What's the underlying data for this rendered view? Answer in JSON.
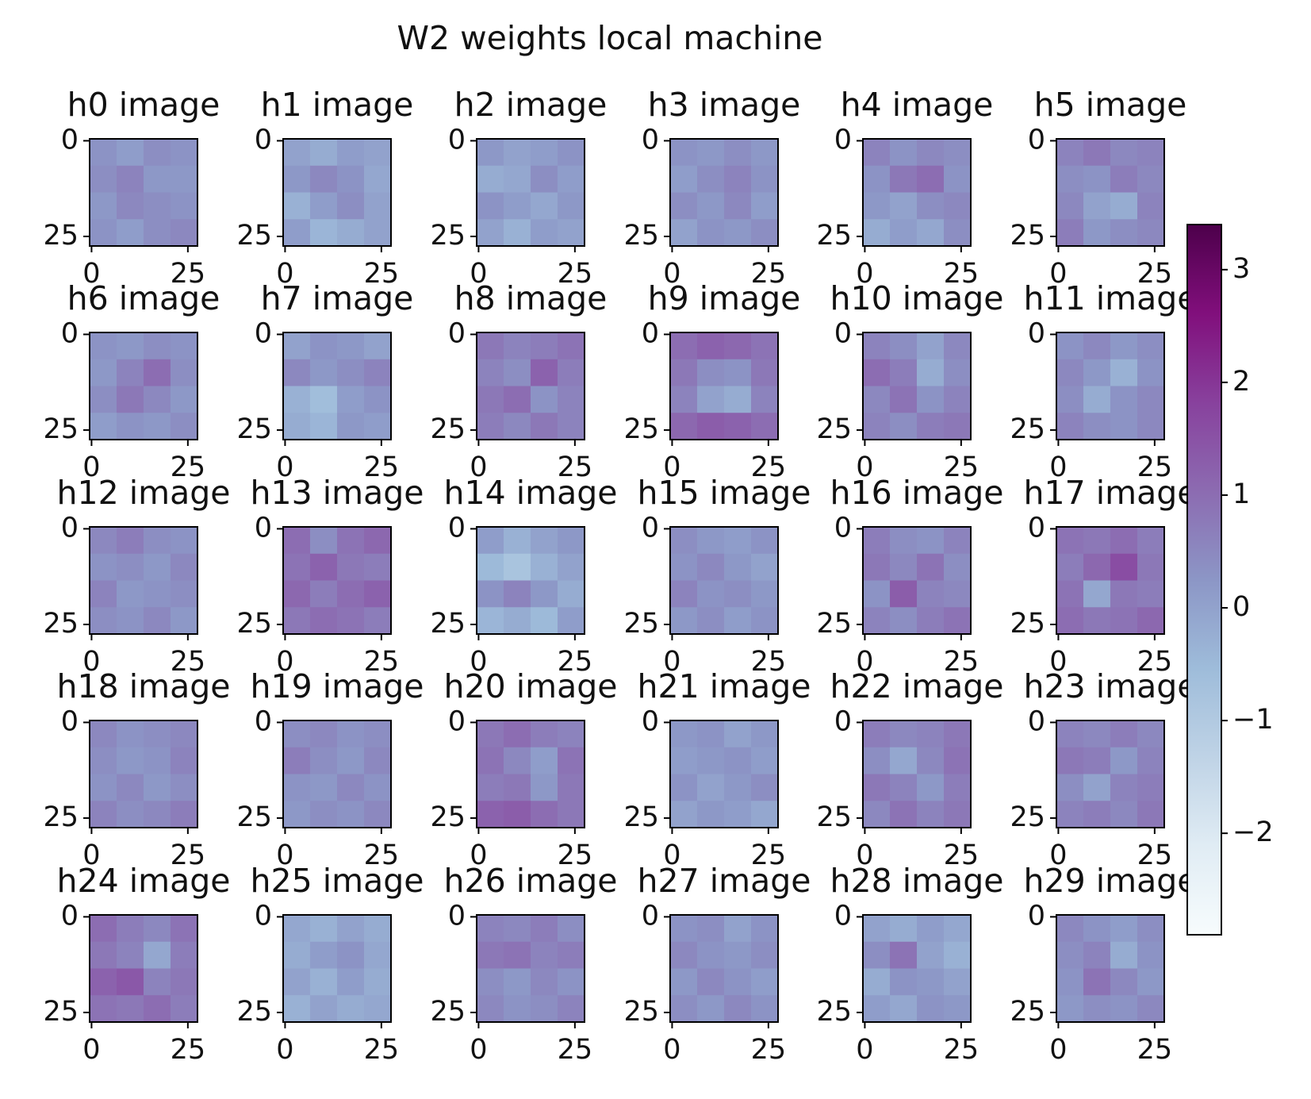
{
  "title": "W2 weights local machine",
  "colorbar": {
    "ylim": [
      -2.9,
      3.4
    ],
    "yticks": [
      {
        "value": -2,
        "label": "−2"
      },
      {
        "value": -1,
        "label": "−1"
      },
      0,
      1,
      2,
      3
    ],
    "colormap": [
      "#f7fcfd",
      "#e0ecf4",
      "#bfd3e6",
      "#9ebcda",
      "#8c96c6",
      "#8c6bb1",
      "#88419d",
      "#810f7c",
      "#4d004b"
    ]
  },
  "chart_data": [
    {
      "type": "heatmap",
      "title": "h0 image",
      "xlim": [
        -0.5,
        27.5
      ],
      "ylim": [
        27.5,
        -0.5
      ],
      "xticks": [
        0,
        25
      ],
      "yticks": [
        0,
        25
      ],
      "values": [
        [
          0.3,
          0.1,
          0.4,
          0.3
        ],
        [
          0.4,
          0.6,
          0.2,
          0.2
        ],
        [
          0.2,
          0.5,
          0.4,
          0.3
        ],
        [
          0.3,
          0.1,
          0.4,
          0.5
        ]
      ]
    },
    {
      "type": "heatmap",
      "title": "h1 image",
      "xlim": [
        -0.5,
        27.5
      ],
      "ylim": [
        27.5,
        -0.5
      ],
      "xticks": [
        0,
        25
      ],
      "yticks": [
        0,
        25
      ],
      "values": [
        [
          0.0,
          -0.2,
          0.1,
          0.0
        ],
        [
          0.2,
          0.5,
          0.3,
          -0.1
        ],
        [
          -0.3,
          0.1,
          0.4,
          0.0
        ],
        [
          0.1,
          -0.4,
          -0.2,
          0.0
        ]
      ]
    },
    {
      "type": "heatmap",
      "title": "h2 image",
      "xlim": [
        -0.5,
        27.5
      ],
      "ylim": [
        27.5,
        -0.5
      ],
      "xticks": [
        0,
        25
      ],
      "yticks": [
        0,
        25
      ],
      "values": [
        [
          0.2,
          0.0,
          0.1,
          0.3
        ],
        [
          -0.2,
          -0.1,
          0.4,
          0.1
        ],
        [
          0.3,
          0.1,
          -0.1,
          0.2
        ],
        [
          0.0,
          -0.3,
          0.1,
          0.0
        ]
      ]
    },
    {
      "type": "heatmap",
      "title": "h3 image",
      "xlim": [
        -0.5,
        27.5
      ],
      "ylim": [
        27.5,
        -0.5
      ],
      "xticks": [
        0,
        25
      ],
      "yticks": [
        0,
        25
      ],
      "values": [
        [
          0.3,
          0.2,
          0.4,
          0.2
        ],
        [
          0.1,
          0.4,
          0.6,
          0.3
        ],
        [
          0.4,
          0.2,
          0.5,
          0.1
        ],
        [
          0.0,
          0.3,
          0.2,
          0.4
        ]
      ]
    },
    {
      "type": "heatmap",
      "title": "h4 image",
      "xlim": [
        -0.5,
        27.5
      ],
      "ylim": [
        27.5,
        -0.5
      ],
      "xticks": [
        0,
        25
      ],
      "yticks": [
        0,
        25
      ],
      "values": [
        [
          0.6,
          0.3,
          0.5,
          0.4
        ],
        [
          0.3,
          0.8,
          1.0,
          0.3
        ],
        [
          0.2,
          0.0,
          0.4,
          0.5
        ],
        [
          -0.2,
          0.1,
          -0.1,
          0.4
        ]
      ]
    },
    {
      "type": "heatmap",
      "title": "h5 image",
      "xlim": [
        -0.5,
        27.5
      ],
      "ylim": [
        27.5,
        -0.5
      ],
      "xticks": [
        0,
        25
      ],
      "yticks": [
        0,
        25
      ],
      "values": [
        [
          0.6,
          0.8,
          0.5,
          0.6
        ],
        [
          0.4,
          0.3,
          0.7,
          0.5
        ],
        [
          0.5,
          0.0,
          -0.2,
          0.6
        ],
        [
          0.7,
          0.2,
          0.4,
          0.5
        ]
      ]
    },
    {
      "type": "heatmap",
      "title": "h6 image",
      "xlim": [
        -0.5,
        27.5
      ],
      "ylim": [
        27.5,
        -0.5
      ],
      "xticks": [
        0,
        25
      ],
      "yticks": [
        0,
        25
      ],
      "values": [
        [
          0.3,
          0.2,
          0.4,
          0.3
        ],
        [
          0.2,
          0.6,
          1.0,
          0.4
        ],
        [
          0.4,
          0.8,
          0.5,
          0.2
        ],
        [
          0.1,
          0.3,
          0.2,
          0.4
        ]
      ]
    },
    {
      "type": "heatmap",
      "title": "h7 image",
      "xlim": [
        -0.5,
        27.5
      ],
      "ylim": [
        27.5,
        -0.5
      ],
      "xticks": [
        0,
        25
      ],
      "yticks": [
        0,
        25
      ],
      "values": [
        [
          0.0,
          0.3,
          0.2,
          0.0
        ],
        [
          0.5,
          0.2,
          0.4,
          0.6
        ],
        [
          -0.3,
          -0.6,
          0.1,
          0.3
        ],
        [
          -0.2,
          -0.4,
          0.2,
          0.1
        ]
      ]
    },
    {
      "type": "heatmap",
      "title": "h8 image",
      "xlim": [
        -0.5,
        27.5
      ],
      "ylim": [
        27.5,
        -0.5
      ],
      "xticks": [
        0,
        25
      ],
      "yticks": [
        0,
        25
      ],
      "values": [
        [
          0.8,
          0.6,
          0.7,
          0.9
        ],
        [
          0.6,
          0.4,
          1.2,
          0.7
        ],
        [
          0.8,
          1.0,
          0.3,
          0.6
        ],
        [
          0.7,
          0.5,
          0.8,
          0.6
        ]
      ]
    },
    {
      "type": "heatmap",
      "title": "h9 image",
      "xlim": [
        -0.5,
        27.5
      ],
      "ylim": [
        27.5,
        -0.5
      ],
      "xticks": [
        0,
        25
      ],
      "yticks": [
        0,
        25
      ],
      "values": [
        [
          1.0,
          1.2,
          1.1,
          0.9
        ],
        [
          0.8,
          0.4,
          0.3,
          0.8
        ],
        [
          0.6,
          0.0,
          -0.2,
          0.6
        ],
        [
          1.1,
          1.3,
          1.2,
          1.0
        ]
      ]
    },
    {
      "type": "heatmap",
      "title": "h10 image",
      "xlim": [
        -0.5,
        27.5
      ],
      "ylim": [
        27.5,
        -0.5
      ],
      "xticks": [
        0,
        25
      ],
      "yticks": [
        0,
        25
      ],
      "values": [
        [
          0.6,
          0.4,
          0.0,
          0.5
        ],
        [
          1.0,
          0.7,
          -0.2,
          0.4
        ],
        [
          0.5,
          0.9,
          0.3,
          0.6
        ],
        [
          0.6,
          0.4,
          0.7,
          0.8
        ]
      ]
    },
    {
      "type": "heatmap",
      "title": "h11 image",
      "xlim": [
        -0.5,
        27.5
      ],
      "ylim": [
        27.5,
        -0.5
      ],
      "xticks": [
        0,
        25
      ],
      "yticks": [
        0,
        25
      ],
      "values": [
        [
          0.3,
          0.5,
          0.2,
          0.4
        ],
        [
          0.5,
          0.2,
          -0.3,
          0.3
        ],
        [
          0.4,
          -0.2,
          0.3,
          0.5
        ],
        [
          0.6,
          0.4,
          0.3,
          0.5
        ]
      ]
    },
    {
      "type": "heatmap",
      "title": "h12 image",
      "xlim": [
        -0.5,
        27.5
      ],
      "ylim": [
        27.5,
        -0.5
      ],
      "xticks": [
        0,
        25
      ],
      "yticks": [
        0,
        25
      ],
      "values": [
        [
          0.5,
          0.7,
          0.4,
          0.3
        ],
        [
          0.3,
          0.4,
          0.2,
          0.5
        ],
        [
          0.6,
          0.2,
          0.3,
          0.4
        ],
        [
          0.4,
          0.3,
          0.5,
          0.2
        ]
      ]
    },
    {
      "type": "heatmap",
      "title": "h13 image",
      "xlim": [
        -0.5,
        27.5
      ],
      "ylim": [
        27.5,
        -0.5
      ],
      "xticks": [
        0,
        25
      ],
      "yticks": [
        0,
        25
      ],
      "values": [
        [
          1.0,
          0.4,
          0.9,
          1.1
        ],
        [
          0.9,
          1.2,
          0.8,
          0.7
        ],
        [
          1.1,
          0.7,
          1.0,
          1.2
        ],
        [
          0.8,
          1.0,
          0.9,
          0.7
        ]
      ]
    },
    {
      "type": "heatmap",
      "title": "h14 image",
      "xlim": [
        -0.5,
        27.5
      ],
      "ylim": [
        27.5,
        -0.5
      ],
      "xticks": [
        0,
        25
      ],
      "yticks": [
        0,
        25
      ],
      "values": [
        [
          0.1,
          -0.3,
          0.0,
          0.2
        ],
        [
          -0.5,
          -0.8,
          -0.3,
          0.0
        ],
        [
          0.3,
          0.6,
          0.2,
          -0.2
        ],
        [
          -0.4,
          -0.2,
          -0.5,
          0.1
        ]
      ]
    },
    {
      "type": "heatmap",
      "title": "h15 image",
      "xlim": [
        -0.5,
        27.5
      ],
      "ylim": [
        27.5,
        -0.5
      ],
      "xticks": [
        0,
        25
      ],
      "yticks": [
        0,
        25
      ],
      "values": [
        [
          0.4,
          0.2,
          0.1,
          0.3
        ],
        [
          0.3,
          0.5,
          0.2,
          0.0
        ],
        [
          0.6,
          0.3,
          0.4,
          0.2
        ],
        [
          0.2,
          0.4,
          0.1,
          0.3
        ]
      ]
    },
    {
      "type": "heatmap",
      "title": "h16 image",
      "xlim": [
        -0.5,
        27.5
      ],
      "ylim": [
        27.5,
        -0.5
      ],
      "xticks": [
        0,
        25
      ],
      "yticks": [
        0,
        25
      ],
      "values": [
        [
          0.7,
          0.4,
          0.3,
          0.6
        ],
        [
          0.8,
          0.5,
          0.9,
          0.4
        ],
        [
          0.3,
          1.3,
          0.6,
          0.5
        ],
        [
          0.6,
          0.4,
          0.7,
          0.9
        ]
      ]
    },
    {
      "type": "heatmap",
      "title": "h17 image",
      "xlim": [
        -0.5,
        27.5
      ],
      "ylim": [
        27.5,
        -0.5
      ],
      "xticks": [
        0,
        25
      ],
      "yticks": [
        0,
        25
      ],
      "values": [
        [
          0.9,
          0.8,
          1.0,
          0.7
        ],
        [
          0.7,
          1.1,
          1.6,
          0.8
        ],
        [
          0.9,
          -0.1,
          0.8,
          0.7
        ],
        [
          1.0,
          0.8,
          0.9,
          1.1
        ]
      ]
    },
    {
      "type": "heatmap",
      "title": "h18 image",
      "xlim": [
        -0.5,
        27.5
      ],
      "ylim": [
        27.5,
        -0.5
      ],
      "xticks": [
        0,
        25
      ],
      "yticks": [
        0,
        25
      ],
      "values": [
        [
          0.5,
          0.3,
          0.4,
          0.5
        ],
        [
          0.4,
          0.2,
          0.3,
          0.6
        ],
        [
          0.3,
          0.5,
          0.2,
          0.4
        ],
        [
          0.6,
          0.4,
          0.5,
          0.7
        ]
      ]
    },
    {
      "type": "heatmap",
      "title": "h19 image",
      "xlim": [
        -0.5,
        27.5
      ],
      "ylim": [
        27.5,
        -0.5
      ],
      "xticks": [
        0,
        25
      ],
      "yticks": [
        0,
        25
      ],
      "values": [
        [
          0.4,
          0.5,
          0.3,
          0.4
        ],
        [
          0.7,
          0.4,
          0.2,
          0.5
        ],
        [
          0.3,
          0.2,
          0.5,
          0.3
        ],
        [
          0.2,
          0.4,
          0.3,
          0.5
        ]
      ]
    },
    {
      "type": "heatmap",
      "title": "h20 image",
      "xlim": [
        -0.5,
        27.5
      ],
      "ylim": [
        27.5,
        -0.5
      ],
      "xticks": [
        0,
        25
      ],
      "yticks": [
        0,
        25
      ],
      "values": [
        [
          0.8,
          1.0,
          0.7,
          0.6
        ],
        [
          0.9,
          0.5,
          0.1,
          0.9
        ],
        [
          0.7,
          0.8,
          0.2,
          0.8
        ],
        [
          1.2,
          1.3,
          1.0,
          0.8
        ]
      ]
    },
    {
      "type": "heatmap",
      "title": "h21 image",
      "xlim": [
        -0.5,
        27.5
      ],
      "ylim": [
        27.5,
        -0.5
      ],
      "xticks": [
        0,
        25
      ],
      "yticks": [
        0,
        25
      ],
      "values": [
        [
          0.2,
          0.3,
          0.0,
          0.2
        ],
        [
          0.1,
          0.2,
          0.3,
          0.1
        ],
        [
          0.3,
          0.0,
          0.2,
          0.4
        ],
        [
          0.0,
          0.2,
          0.1,
          -0.1
        ]
      ]
    },
    {
      "type": "heatmap",
      "title": "h22 image",
      "xlim": [
        -0.5,
        27.5
      ],
      "ylim": [
        27.5,
        -0.5
      ],
      "xticks": [
        0,
        25
      ],
      "yticks": [
        0,
        25
      ],
      "values": [
        [
          0.7,
          0.5,
          0.6,
          0.8
        ],
        [
          0.4,
          -0.1,
          0.5,
          0.9
        ],
        [
          0.8,
          0.6,
          0.2,
          0.7
        ],
        [
          0.5,
          0.9,
          0.6,
          0.8
        ]
      ]
    },
    {
      "type": "heatmap",
      "title": "h23 image",
      "xlim": [
        -0.5,
        27.5
      ],
      "ylim": [
        27.5,
        -0.5
      ],
      "xticks": [
        0,
        25
      ],
      "yticks": [
        0,
        25
      ],
      "values": [
        [
          0.6,
          0.5,
          0.7,
          0.5
        ],
        [
          0.8,
          0.7,
          0.2,
          0.6
        ],
        [
          0.4,
          0.0,
          0.6,
          0.7
        ],
        [
          0.6,
          0.7,
          0.5,
          0.8
        ]
      ]
    },
    {
      "type": "heatmap",
      "title": "h24 image",
      "xlim": [
        -0.5,
        27.5
      ],
      "ylim": [
        27.5,
        -0.5
      ],
      "xticks": [
        0,
        25
      ],
      "yticks": [
        0,
        25
      ],
      "values": [
        [
          1.0,
          0.7,
          0.5,
          0.9
        ],
        [
          0.8,
          0.6,
          -0.1,
          0.7
        ],
        [
          1.2,
          1.4,
          0.6,
          0.8
        ],
        [
          0.9,
          0.8,
          1.0,
          0.7
        ]
      ]
    },
    {
      "type": "heatmap",
      "title": "h25 image",
      "xlim": [
        -0.5,
        27.5
      ],
      "ylim": [
        27.5,
        -0.5
      ],
      "xticks": [
        0,
        25
      ],
      "yticks": [
        0,
        25
      ],
      "values": [
        [
          -0.1,
          -0.3,
          0.0,
          -0.2
        ],
        [
          -0.2,
          0.1,
          0.3,
          -0.1
        ],
        [
          0.0,
          -0.3,
          0.1,
          -0.2
        ],
        [
          -0.3,
          0.0,
          -0.2,
          -0.1
        ]
      ]
    },
    {
      "type": "heatmap",
      "title": "h26 image",
      "xlim": [
        -0.5,
        27.5
      ],
      "ylim": [
        27.5,
        -0.5
      ],
      "xticks": [
        0,
        25
      ],
      "yticks": [
        0,
        25
      ],
      "values": [
        [
          0.6,
          0.5,
          0.7,
          0.4
        ],
        [
          0.8,
          0.9,
          0.6,
          0.7
        ],
        [
          0.4,
          0.2,
          0.5,
          0.3
        ],
        [
          0.5,
          0.3,
          0.4,
          0.6
        ]
      ]
    },
    {
      "type": "heatmap",
      "title": "h27 image",
      "xlim": [
        -0.5,
        27.5
      ],
      "ylim": [
        27.5,
        -0.5
      ],
      "xticks": [
        0,
        25
      ],
      "yticks": [
        0,
        25
      ],
      "values": [
        [
          0.3,
          0.4,
          0.0,
          0.3
        ],
        [
          0.5,
          0.3,
          0.2,
          0.4
        ],
        [
          0.2,
          0.5,
          0.3,
          0.1
        ],
        [
          0.4,
          0.2,
          0.5,
          0.3
        ]
      ]
    },
    {
      "type": "heatmap",
      "title": "h28 image",
      "xlim": [
        -0.5,
        27.5
      ],
      "ylim": [
        27.5,
        -0.5
      ],
      "xticks": [
        0,
        25
      ],
      "yticks": [
        0,
        25
      ],
      "values": [
        [
          0.0,
          -0.2,
          0.1,
          -0.1
        ],
        [
          0.4,
          0.9,
          0.0,
          -0.3
        ],
        [
          -0.2,
          0.3,
          0.2,
          0.0
        ],
        [
          0.1,
          -0.1,
          0.3,
          0.2
        ]
      ]
    },
    {
      "type": "heatmap",
      "title": "h29 image",
      "xlim": [
        -0.5,
        27.5
      ],
      "ylim": [
        27.5,
        -0.5
      ],
      "xticks": [
        0,
        25
      ],
      "yticks": [
        0,
        25
      ],
      "values": [
        [
          0.5,
          0.3,
          0.1,
          0.4
        ],
        [
          0.4,
          0.6,
          -0.2,
          0.3
        ],
        [
          0.3,
          0.9,
          0.5,
          0.2
        ],
        [
          0.2,
          0.4,
          0.3,
          0.5
        ]
      ]
    }
  ]
}
